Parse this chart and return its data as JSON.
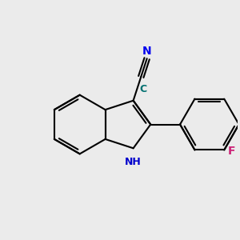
{
  "background_color": "#ebebeb",
  "bond_color": "#000000",
  "bond_width": 1.5,
  "atom_colors": {
    "N_nitrile": "#0000ee",
    "N_nh": "#0000cc",
    "C_label": "#007070",
    "F": "#cc2277"
  },
  "font_size": 10,
  "xlim": [
    -3.5,
    4.5
  ],
  "ylim": [
    -3.2,
    3.5
  ]
}
